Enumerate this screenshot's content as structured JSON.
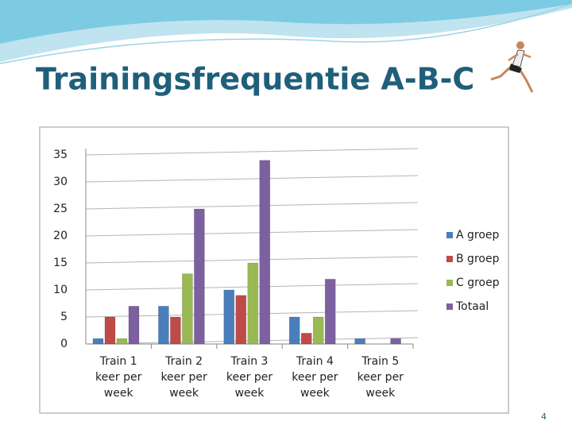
{
  "slide": {
    "title": "Trainingsfrequentie A-B-C",
    "page_number": "4"
  },
  "chart_data": {
    "type": "bar",
    "categories": [
      "Train 1 keer per week",
      "Train 2 keer per week",
      "Train 3 keer per week",
      "Train 4 keer per week",
      "Train 5 keer per week"
    ],
    "series": [
      {
        "name": "A groep",
        "color": "#4a7ebb",
        "values": [
          1,
          7,
          10,
          5,
          1
        ]
      },
      {
        "name": "B groep",
        "color": "#be4b48",
        "values": [
          5,
          5,
          9,
          2,
          0
        ]
      },
      {
        "name": "C groep",
        "color": "#98b954",
        "values": [
          1,
          13,
          15,
          5,
          0
        ]
      },
      {
        "name": "Totaal",
        "color": "#7d60a0",
        "values": [
          7,
          25,
          34,
          12,
          1
        ]
      }
    ],
    "ylim": [
      0,
      35
    ],
    "yticks": [
      0,
      5,
      10,
      15,
      20,
      25,
      30,
      35
    ],
    "grid": true,
    "legend": "right"
  }
}
